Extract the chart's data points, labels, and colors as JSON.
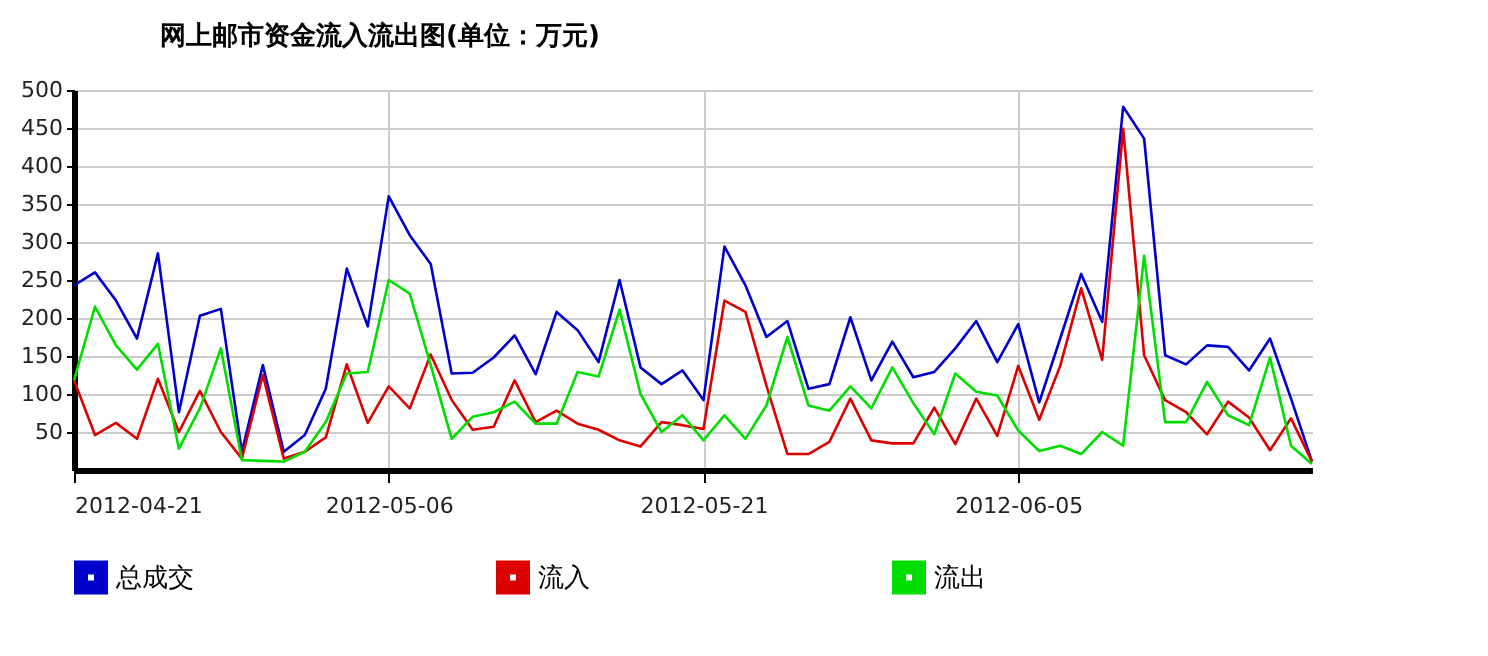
{
  "chart_data": {
    "type": "line",
    "title": "网上邮市资金流入流出图(单位：万元)",
    "x": [
      "2012-04-21",
      "2012-04-22",
      "2012-04-23",
      "2012-04-24",
      "2012-04-25",
      "2012-04-26",
      "2012-04-27",
      "2012-04-28",
      "2012-04-29",
      "2012-04-30",
      "2012-05-01",
      "2012-05-02",
      "2012-05-03",
      "2012-05-04",
      "2012-05-05",
      "2012-05-06",
      "2012-05-07",
      "2012-05-08",
      "2012-05-09",
      "2012-05-10",
      "2012-05-11",
      "2012-05-12",
      "2012-05-13",
      "2012-05-14",
      "2012-05-15",
      "2012-05-16",
      "2012-05-17",
      "2012-05-18",
      "2012-05-19",
      "2012-05-20",
      "2012-05-21",
      "2012-05-22",
      "2012-05-23",
      "2012-05-24",
      "2012-05-25",
      "2012-05-26",
      "2012-05-27",
      "2012-05-28",
      "2012-05-29",
      "2012-05-30",
      "2012-05-31",
      "2012-06-01",
      "2012-06-02",
      "2012-06-03",
      "2012-06-04",
      "2012-06-05",
      "2012-06-06",
      "2012-06-07",
      "2012-06-08",
      "2012-06-09",
      "2012-06-10",
      "2012-06-11",
      "2012-06-12",
      "2012-06-13",
      "2012-06-14",
      "2012-06-15",
      "2012-06-16",
      "2012-06-17",
      "2012-06-18",
      "2012-06-19"
    ],
    "series": [
      {
        "name": "总成交",
        "color": "#0000cc",
        "values": [
          243,
          260,
          223,
          173,
          285,
          76,
          203,
          212,
          24,
          138,
          24,
          46,
          107,
          265,
          189,
          360,
          309,
          271,
          127,
          128,
          148,
          177,
          126,
          208,
          184,
          142,
          250,
          135,
          113,
          131,
          92,
          294,
          243,
          175,
          196,
          107,
          113,
          201,
          118,
          169,
          122,
          129,
          160,
          196,
          142,
          192,
          89,
          173,
          258,
          195,
          478,
          436,
          151,
          139,
          164,
          162,
          131,
          173,
          94,
          11
        ]
      },
      {
        "name": "流入",
        "color": "#dd0000",
        "values": [
          118,
          46,
          62,
          41,
          120,
          50,
          104,
          50,
          15,
          125,
          15,
          24,
          43,
          139,
          62,
          110,
          81,
          152,
          92,
          53,
          57,
          118,
          63,
          78,
          61,
          53,
          39,
          31,
          63,
          59,
          54,
          223,
          208,
          111,
          21,
          21,
          37,
          94,
          39,
          35,
          35,
          82,
          34,
          94,
          45,
          137,
          66,
          137,
          239,
          145,
          449,
          151,
          92,
          76,
          47,
          90,
          69,
          26,
          68,
          11
        ]
      },
      {
        "name": "流出",
        "color": "#00dd00",
        "values": [
          118,
          215,
          164,
          132,
          166,
          28,
          81,
          160,
          13,
          12,
          11,
          24,
          63,
          127,
          129,
          250,
          232,
          138,
          41,
          70,
          76,
          90,
          61,
          61,
          129,
          123,
          211,
          100,
          50,
          72,
          39,
          72,
          41,
          85,
          175,
          85,
          78,
          110,
          81,
          135,
          88,
          47,
          127,
          103,
          98,
          52,
          25,
          32,
          21,
          50,
          32,
          282,
          63,
          63,
          116,
          72,
          59,
          148,
          32,
          8
        ]
      }
    ],
    "xlim": [
      "2012-04-21",
      "2012-06-19"
    ],
    "xticks": [
      "2012-04-21",
      "2012-05-06",
      "2012-05-21",
      "2012-06-05"
    ],
    "ylim": [
      0,
      500
    ],
    "yticks": [
      50,
      100,
      150,
      200,
      250,
      300,
      350,
      400,
      450,
      500
    ],
    "grid": true,
    "legend": "bottom left",
    "line_style": "solid",
    "marker": "none"
  }
}
